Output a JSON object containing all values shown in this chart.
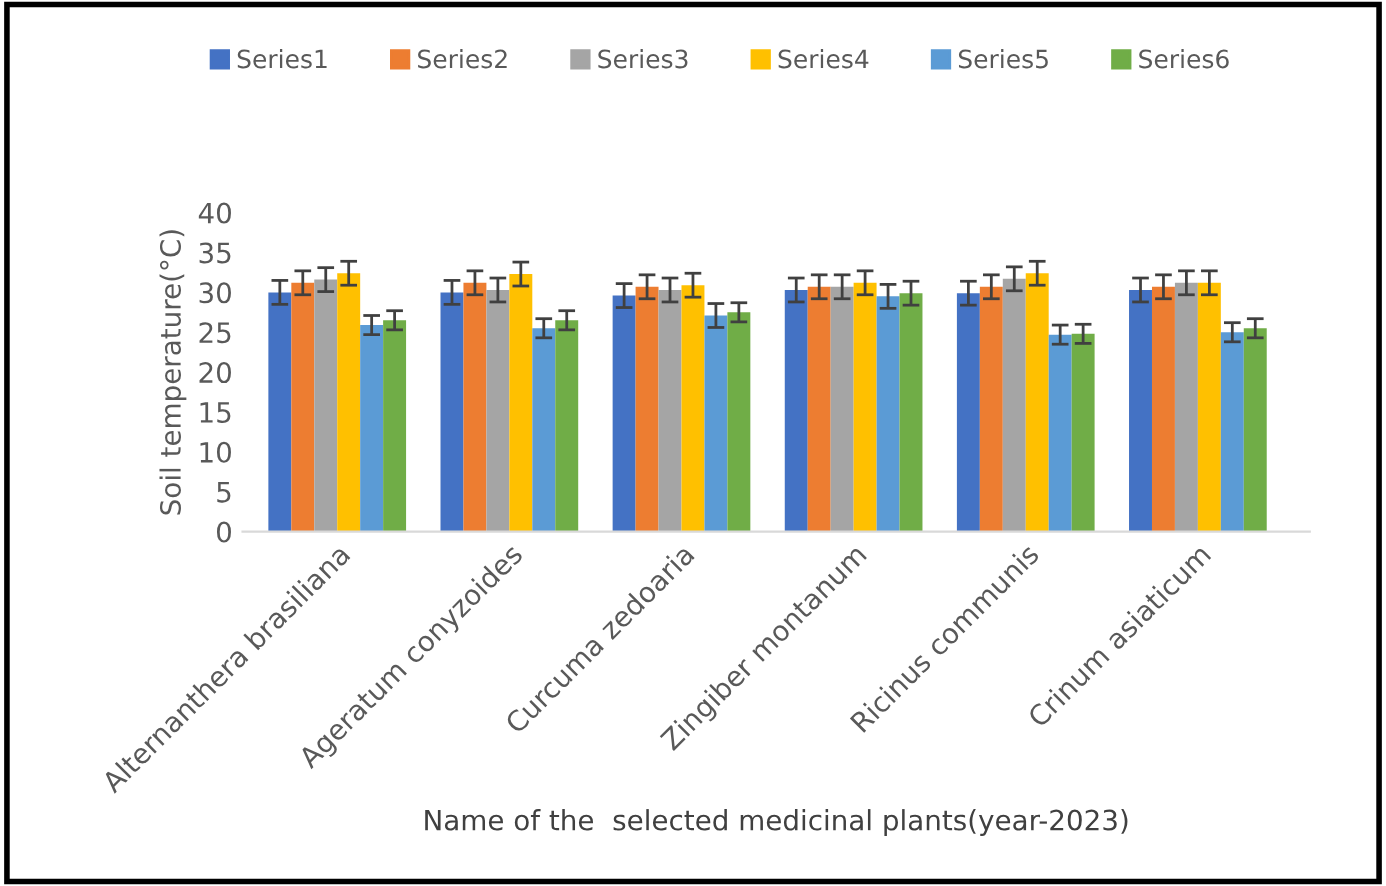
{
  "chart_data": {
    "type": "bar",
    "xlabel": "Name of the  selected medicinal plants(year-2023)",
    "ylabel": "Soil temperature(°C)",
    "categories": [
      "Alternanthera brasiliana",
      "Ageratum conyzoides",
      "Curcuma zedoaria",
      "Zingiber montanum",
      "Ricinus communis",
      "Crinum asiaticum"
    ],
    "series": [
      {
        "name": "Series1",
        "color": "#4472c4",
        "values": [
          30,
          30,
          29.6,
          30.3,
          29.9,
          30.3
        ],
        "errors": [
          1.5,
          1.5,
          1.5,
          1.5,
          1.5,
          1.5
        ]
      },
      {
        "name": "Series2",
        "color": "#ed7d31",
        "values": [
          31.2,
          31.2,
          30.7,
          30.7,
          30.7,
          30.7
        ],
        "errors": [
          1.5,
          1.5,
          1.5,
          1.5,
          1.5,
          1.5
        ]
      },
      {
        "name": "Series3",
        "color": "#a5a5a5",
        "values": [
          31.6,
          30.3,
          30.3,
          30.7,
          31.7,
          31.2
        ],
        "errors": [
          1.5,
          1.5,
          1.5,
          1.5,
          1.5,
          1.5
        ]
      },
      {
        "name": "Series4",
        "color": "#ffc000",
        "values": [
          32.4,
          32.3,
          30.9,
          31.2,
          32.4,
          31.2
        ],
        "errors": [
          1.5,
          1.5,
          1.5,
          1.5,
          1.5,
          1.5
        ]
      },
      {
        "name": "Series5",
        "color": "#5b9bd5",
        "values": [
          25.9,
          25.5,
          27.1,
          29.5,
          24.7,
          25
        ],
        "errors": [
          1.2,
          1.2,
          1.5,
          1.5,
          1.2,
          1.2
        ]
      },
      {
        "name": "Series6",
        "color": "#70ad47",
        "values": [
          26.5,
          26.5,
          27.5,
          29.9,
          24.8,
          25.5
        ],
        "errors": [
          1.2,
          1.2,
          1.2,
          1.5,
          1.2,
          1.2
        ]
      }
    ],
    "ylim": [
      0,
      40
    ],
    "yticks": [
      0,
      5,
      10,
      15,
      20,
      25,
      30,
      35,
      40
    ],
    "grid": false,
    "legend": "top"
  }
}
